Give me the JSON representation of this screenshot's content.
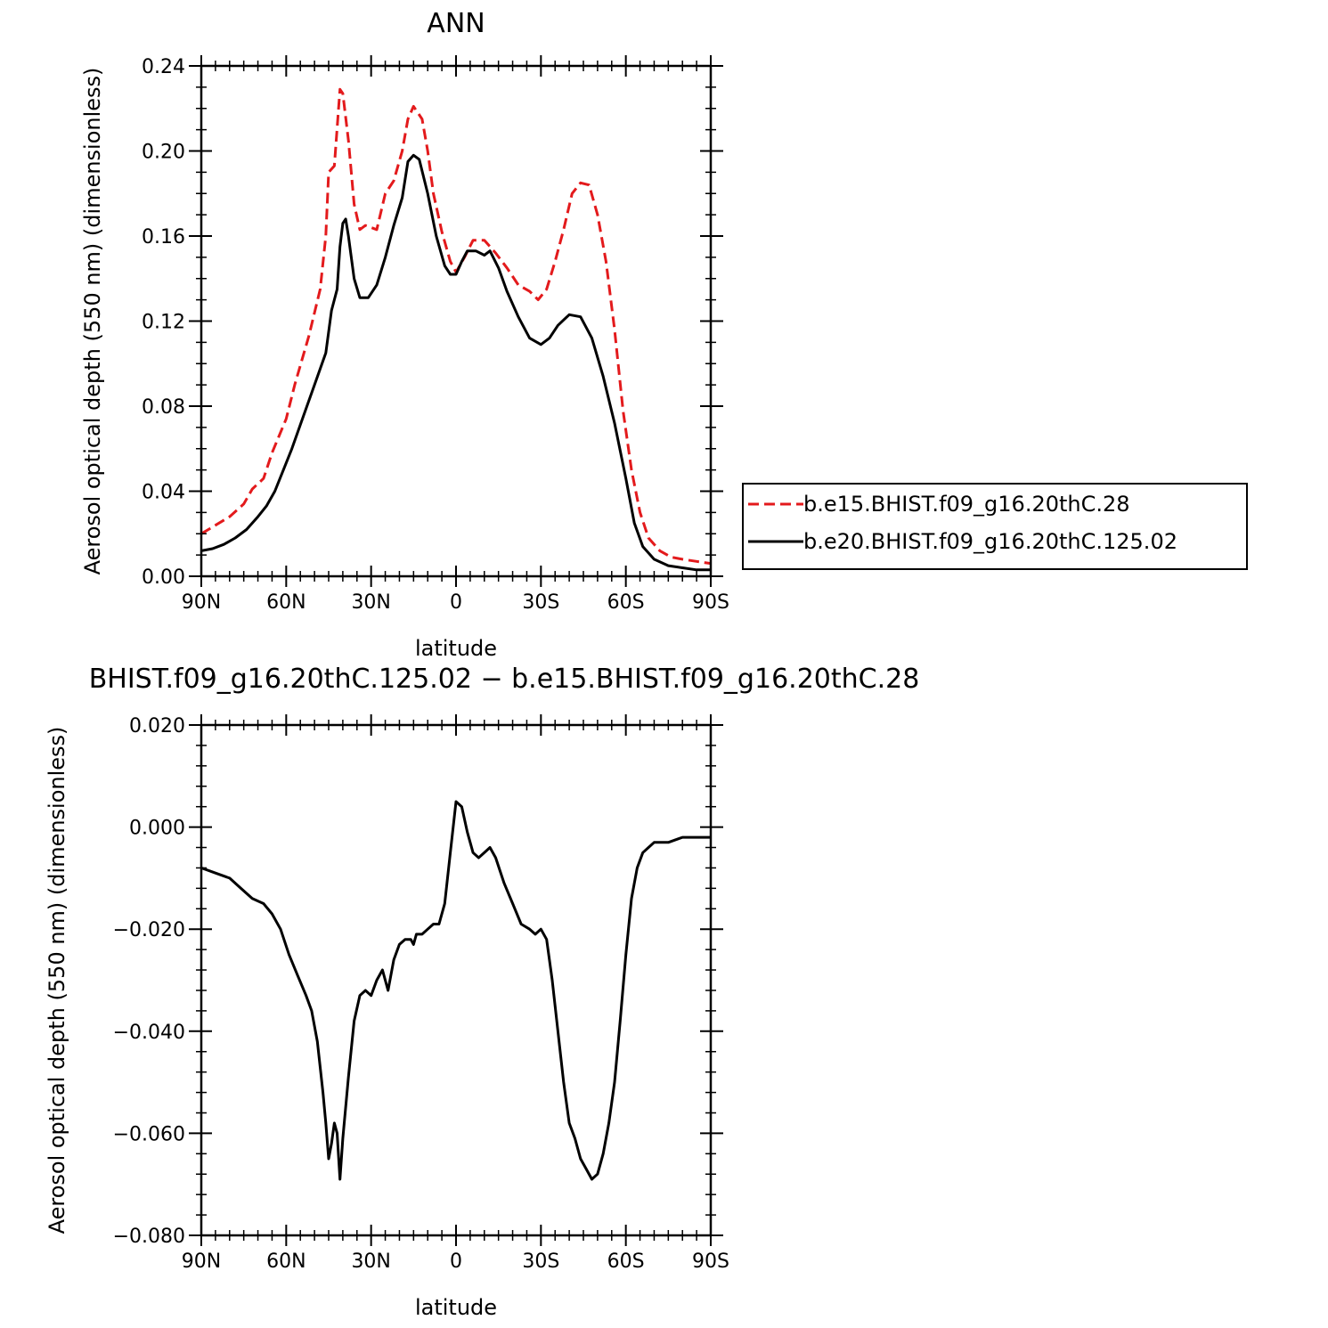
{
  "chart_data": [
    {
      "type": "line",
      "title": "ANN",
      "xlabel": "latitude",
      "ylabel": "Aerosol optical depth (550 nm) (dimensionless)",
      "xlim": [
        90,
        -90
      ],
      "ylim": [
        0.0,
        0.24
      ],
      "x_tick_values": [
        90,
        60,
        30,
        0,
        -30,
        -60,
        -90
      ],
      "x_tick_labels": [
        "90N",
        "60N",
        "30N",
        "0",
        "30S",
        "60S",
        "90S"
      ],
      "y_tick_values": [
        0.0,
        0.04,
        0.08,
        0.12,
        0.16,
        0.2,
        0.24
      ],
      "y_tick_labels": [
        "0.00",
        "0.04",
        "0.08",
        "0.12",
        "0.16",
        "0.20",
        "0.24"
      ],
      "grid": false,
      "legend_position": "right",
      "series": [
        {
          "name": "b.e15.BHIST.f09_g16.20thC.28",
          "color": "#e31a1c",
          "dash": "dashed",
          "points": [
            [
              90,
              0.02
            ],
            [
              85,
              0.024
            ],
            [
              80,
              0.028
            ],
            [
              75,
              0.034
            ],
            [
              72,
              0.041
            ],
            [
              68,
              0.046
            ],
            [
              65,
              0.058
            ],
            [
              60,
              0.074
            ],
            [
              57,
              0.09
            ],
            [
              52,
              0.113
            ],
            [
              48,
              0.135
            ],
            [
              46,
              0.16
            ],
            [
              45,
              0.19
            ],
            [
              43,
              0.193
            ],
            [
              41,
              0.229
            ],
            [
              40,
              0.227
            ],
            [
              38,
              0.205
            ],
            [
              36,
              0.175
            ],
            [
              34,
              0.163
            ],
            [
              32,
              0.165
            ],
            [
              28,
              0.163
            ],
            [
              25,
              0.18
            ],
            [
              22,
              0.186
            ],
            [
              19,
              0.2
            ],
            [
              17,
              0.215
            ],
            [
              15,
              0.221
            ],
            [
              12,
              0.215
            ],
            [
              10,
              0.2
            ],
            [
              8,
              0.18
            ],
            [
              5,
              0.162
            ],
            [
              2,
              0.148
            ],
            [
              0,
              0.143
            ],
            [
              -3,
              0.15
            ],
            [
              -6,
              0.158
            ],
            [
              -10,
              0.158
            ],
            [
              -14,
              0.152
            ],
            [
              -18,
              0.145
            ],
            [
              -22,
              0.137
            ],
            [
              -26,
              0.134
            ],
            [
              -29,
              0.13
            ],
            [
              -32,
              0.135
            ],
            [
              -35,
              0.148
            ],
            [
              -38,
              0.163
            ],
            [
              -41,
              0.18
            ],
            [
              -44,
              0.185
            ],
            [
              -47,
              0.184
            ],
            [
              -50,
              0.17
            ],
            [
              -53,
              0.148
            ],
            [
              -56,
              0.116
            ],
            [
              -59,
              0.078
            ],
            [
              -62,
              0.05
            ],
            [
              -65,
              0.03
            ],
            [
              -68,
              0.018
            ],
            [
              -72,
              0.012
            ],
            [
              -76,
              0.009
            ],
            [
              -80,
              0.008
            ],
            [
              -85,
              0.007
            ],
            [
              -90,
              0.006
            ]
          ]
        },
        {
          "name": "b.e20.BHIST.f09_g16.20thC.125.02",
          "color": "#000000",
          "dash": "solid",
          "points": [
            [
              90,
              0.012
            ],
            [
              86,
              0.013
            ],
            [
              82,
              0.015
            ],
            [
              78,
              0.018
            ],
            [
              74,
              0.022
            ],
            [
              70,
              0.028
            ],
            [
              67,
              0.033
            ],
            [
              64,
              0.04
            ],
            [
              61,
              0.05
            ],
            [
              58,
              0.06
            ],
            [
              54,
              0.075
            ],
            [
              50,
              0.09
            ],
            [
              46,
              0.105
            ],
            [
              44,
              0.125
            ],
            [
              42,
              0.135
            ],
            [
              41,
              0.155
            ],
            [
              40,
              0.166
            ],
            [
              39,
              0.168
            ],
            [
              38,
              0.16
            ],
            [
              36,
              0.14
            ],
            [
              34,
              0.131
            ],
            [
              31,
              0.131
            ],
            [
              28,
              0.137
            ],
            [
              25,
              0.15
            ],
            [
              22,
              0.165
            ],
            [
              19,
              0.178
            ],
            [
              17,
              0.195
            ],
            [
              15,
              0.198
            ],
            [
              13,
              0.196
            ],
            [
              10,
              0.18
            ],
            [
              7,
              0.16
            ],
            [
              4,
              0.146
            ],
            [
              2,
              0.142
            ],
            [
              0,
              0.142
            ],
            [
              -2,
              0.148
            ],
            [
              -4,
              0.153
            ],
            [
              -7,
              0.153
            ],
            [
              -10,
              0.151
            ],
            [
              -12,
              0.153
            ],
            [
              -15,
              0.145
            ],
            [
              -18,
              0.134
            ],
            [
              -22,
              0.122
            ],
            [
              -26,
              0.112
            ],
            [
              -30,
              0.109
            ],
            [
              -33,
              0.112
            ],
            [
              -36,
              0.118
            ],
            [
              -40,
              0.123
            ],
            [
              -44,
              0.122
            ],
            [
              -48,
              0.112
            ],
            [
              -52,
              0.094
            ],
            [
              -56,
              0.072
            ],
            [
              -60,
              0.046
            ],
            [
              -63,
              0.025
            ],
            [
              -66,
              0.014
            ],
            [
              -70,
              0.008
            ],
            [
              -75,
              0.005
            ],
            [
              -80,
              0.004
            ],
            [
              -85,
              0.003
            ],
            [
              -90,
              0.003
            ]
          ]
        }
      ]
    },
    {
      "type": "line",
      "title": "BHIST.f09_g16.20thC.125.02 − b.e15.BHIST.f09_g16.20thC.28",
      "xlabel": "latitude",
      "ylabel": "Aerosol optical depth (550 nm) (dimensionless)",
      "xlim": [
        90,
        -90
      ],
      "ylim": [
        -0.08,
        0.02
      ],
      "x_tick_values": [
        90,
        60,
        30,
        0,
        -30,
        -60,
        -90
      ],
      "x_tick_labels": [
        "90N",
        "60N",
        "30N",
        "0",
        "30S",
        "60S",
        "90S"
      ],
      "y_tick_values": [
        -0.08,
        -0.06,
        -0.04,
        -0.02,
        0.0,
        0.02
      ],
      "y_tick_labels": [
        "−0.080",
        "−0.060",
        "−0.040",
        "−0.020",
        "0.000",
        "0.020"
      ],
      "grid": false,
      "series": [
        {
          "color": "#000000",
          "dash": "solid",
          "points": [
            [
              90,
              -0.008
            ],
            [
              85,
              -0.009
            ],
            [
              80,
              -0.01
            ],
            [
              76,
              -0.012
            ],
            [
              72,
              -0.014
            ],
            [
              68,
              -0.015
            ],
            [
              65,
              -0.017
            ],
            [
              62,
              -0.02
            ],
            [
              59,
              -0.025
            ],
            [
              56,
              -0.029
            ],
            [
              53,
              -0.033
            ],
            [
              51,
              -0.036
            ],
            [
              49,
              -0.042
            ],
            [
              47,
              -0.052
            ],
            [
              46,
              -0.058
            ],
            [
              45,
              -0.065
            ],
            [
              44,
              -0.062
            ],
            [
              43,
              -0.058
            ],
            [
              42,
              -0.06
            ],
            [
              41,
              -0.069
            ],
            [
              40,
              -0.061
            ],
            [
              38,
              -0.049
            ],
            [
              36,
              -0.038
            ],
            [
              34,
              -0.033
            ],
            [
              32,
              -0.032
            ],
            [
              30,
              -0.033
            ],
            [
              28,
              -0.03
            ],
            [
              26,
              -0.028
            ],
            [
              24,
              -0.032
            ],
            [
              22,
              -0.026
            ],
            [
              20,
              -0.023
            ],
            [
              18,
              -0.022
            ],
            [
              16,
              -0.022
            ],
            [
              15,
              -0.023
            ],
            [
              14,
              -0.021
            ],
            [
              12,
              -0.021
            ],
            [
              10,
              -0.02
            ],
            [
              8,
              -0.019
            ],
            [
              6,
              -0.019
            ],
            [
              4,
              -0.015
            ],
            [
              2,
              -0.005
            ],
            [
              0,
              0.005
            ],
            [
              -2,
              0.004
            ],
            [
              -4,
              -0.001
            ],
            [
              -6,
              -0.005
            ],
            [
              -8,
              -0.006
            ],
            [
              -10,
              -0.005
            ],
            [
              -12,
              -0.004
            ],
            [
              -14,
              -0.006
            ],
            [
              -17,
              -0.011
            ],
            [
              -20,
              -0.015
            ],
            [
              -23,
              -0.019
            ],
            [
              -26,
              -0.02
            ],
            [
              -28,
              -0.021
            ],
            [
              -30,
              -0.02
            ],
            [
              -32,
              -0.022
            ],
            [
              -34,
              -0.03
            ],
            [
              -36,
              -0.04
            ],
            [
              -38,
              -0.05
            ],
            [
              -40,
              -0.058
            ],
            [
              -42,
              -0.061
            ],
            [
              -44,
              -0.065
            ],
            [
              -46,
              -0.067
            ],
            [
              -48,
              -0.069
            ],
            [
              -50,
              -0.068
            ],
            [
              -52,
              -0.064
            ],
            [
              -54,
              -0.058
            ],
            [
              -56,
              -0.05
            ],
            [
              -58,
              -0.038
            ],
            [
              -60,
              -0.025
            ],
            [
              -62,
              -0.014
            ],
            [
              -64,
              -0.008
            ],
            [
              -66,
              -0.005
            ],
            [
              -68,
              -0.004
            ],
            [
              -70,
              -0.003
            ],
            [
              -75,
              -0.003
            ],
            [
              -80,
              -0.002
            ],
            [
              -85,
              -0.002
            ],
            [
              -90,
              -0.002
            ]
          ]
        }
      ]
    }
  ]
}
